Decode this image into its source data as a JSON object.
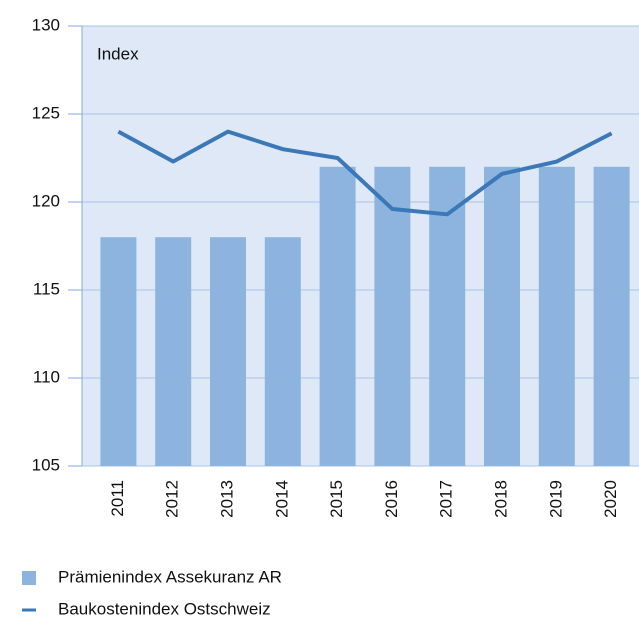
{
  "chart_data": {
    "type": "combo",
    "annotation": "Index",
    "categories": [
      "2011",
      "2012",
      "2013",
      "2014",
      "2015",
      "2016",
      "2017",
      "2018",
      "2019",
      "2020"
    ],
    "series": [
      {
        "name": "Prämienindex Assekuranz AR",
        "type": "bar",
        "color": "#8db4de",
        "values": [
          118,
          118,
          118,
          118,
          122,
          122,
          122,
          122,
          122,
          122
        ]
      },
      {
        "name": "Baukostenindex Ostschweiz",
        "type": "line",
        "color": "#3a78b8",
        "values": [
          124,
          122.3,
          124,
          123,
          122.5,
          119.6,
          119.3,
          121.6,
          122.3,
          123.9
        ]
      }
    ],
    "ylim": [
      105,
      130
    ],
    "yticks": [
      105,
      110,
      115,
      120,
      125,
      130
    ],
    "grid": true
  }
}
